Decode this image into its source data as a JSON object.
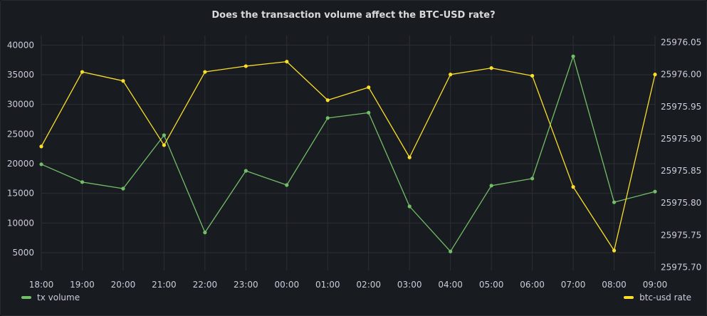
{
  "chart_data": {
    "type": "line",
    "title": "Does the transaction volume affect the BTC-USD rate?",
    "x": [
      "18:00",
      "19:00",
      "20:00",
      "21:00",
      "22:00",
      "23:00",
      "00:00",
      "01:00",
      "02:00",
      "03:00",
      "04:00",
      "05:00",
      "06:00",
      "07:00",
      "08:00",
      "09:00"
    ],
    "y_left": {
      "ticks": [
        5000,
        10000,
        15000,
        20000,
        25000,
        30000,
        35000,
        40000
      ],
      "range": [
        2000,
        41000
      ]
    },
    "y_right": {
      "ticks": [
        "25975.70",
        "25975.75",
        "25975.80",
        "25975.85",
        "25975.90",
        "25975.95",
        "25976.00",
        "25976.05"
      ],
      "range": [
        25975.695,
        25976.055
      ]
    },
    "series": [
      {
        "name": "tx volume",
        "axis": "left",
        "color": "#73bf69",
        "values": [
          19900,
          16900,
          15800,
          24800,
          8400,
          18800,
          16400,
          27700,
          28600,
          12800,
          5200,
          16300,
          17500,
          38100,
          13500,
          15300
        ]
      },
      {
        "name": "btc-usd rate",
        "axis": "right",
        "color": "#fade2a",
        "values": [
          25975.888,
          25976.004,
          25975.99,
          25975.89,
          25976.004,
          25976.013,
          25976.02,
          25975.96,
          25975.98,
          25975.871,
          25976.0,
          25976.01,
          25975.998,
          25975.825,
          25975.726,
          25976.0
        ]
      }
    ],
    "grid": true,
    "legend": "bottom"
  }
}
